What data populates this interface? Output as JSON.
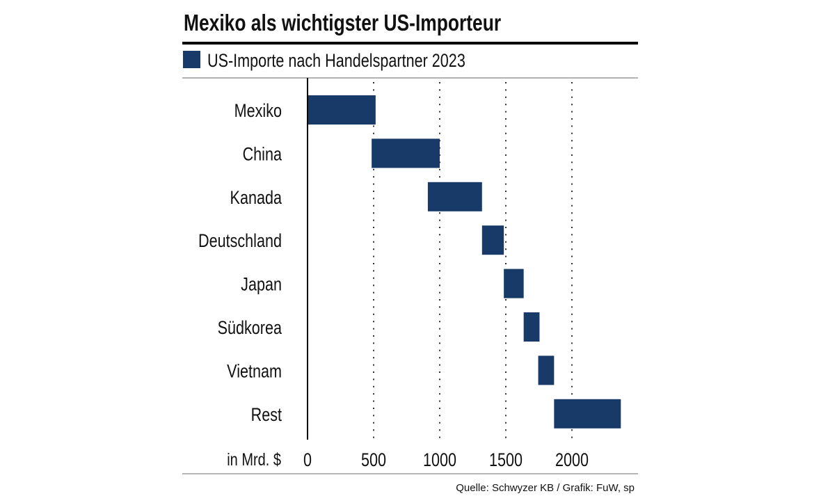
{
  "chart_data": {
    "type": "bar",
    "subtype": "waterfall",
    "title": "Mexiko als wichtigster US-Importeur",
    "legend": [
      {
        "name": "US-Importe nach Handelspartner 2023",
        "color": "#173a69"
      }
    ],
    "legend_placement": "top-left",
    "xlabel": "in Mrd. $",
    "categories": [
      "Mexiko",
      "China",
      "Kanada",
      "Deutschland",
      "Japan",
      "Südkorea",
      "Vietnam",
      "Rest"
    ],
    "ranges": [
      [
        0,
        515
      ],
      [
        485,
        1000
      ],
      [
        910,
        1320
      ],
      [
        1320,
        1485
      ],
      [
        1485,
        1635
      ],
      [
        1635,
        1755
      ],
      [
        1745,
        1865
      ],
      [
        1865,
        2370
      ]
    ],
    "xlim": [
      0,
      2500
    ],
    "xticks": [
      0,
      500,
      1000,
      1500,
      2000
    ],
    "grid": "vertical dotted",
    "source": "Quelle: Schwyzer KB / Grafik: FuW, sp",
    "bar_color": "#173a69"
  }
}
